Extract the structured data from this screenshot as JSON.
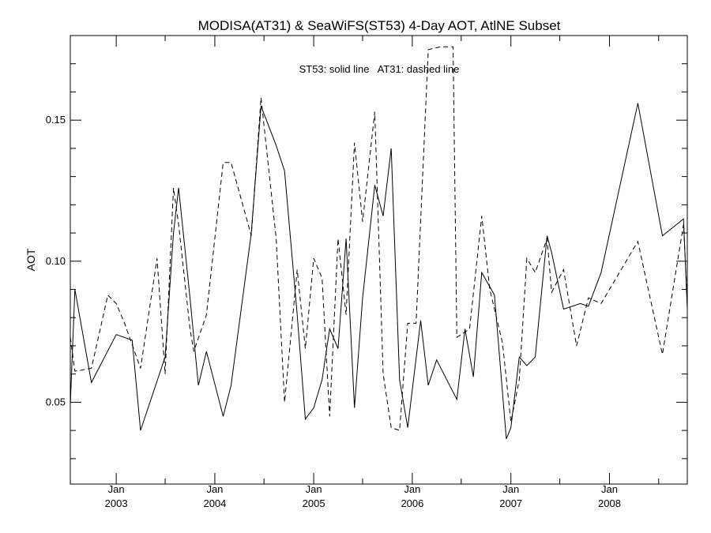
{
  "chart_data": {
    "type": "line",
    "title": "MODISA(AT31) & SeaWiFS(ST53) 4-Day AOT, AtlNE Subset",
    "annotation": "ST53: solid line   AT31: dashed line",
    "ylabel": "AOT",
    "xlabel": "",
    "xlim": [
      "2002-07-15",
      "2008-10-15"
    ],
    "ylim": [
      0.021,
      0.18
    ],
    "yticks": [
      0.05,
      0.1,
      0.15
    ],
    "yticks_labels": [
      "0.05",
      "0.10",
      "0.15"
    ],
    "xticks": [
      {
        "date": "2003-01-01",
        "month": "Jan",
        "year": "2003"
      },
      {
        "date": "2004-01-01",
        "month": "Jan",
        "year": "2004"
      },
      {
        "date": "2005-01-01",
        "month": "Jan",
        "year": "2005"
      },
      {
        "date": "2006-01-01",
        "month": "Jan",
        "year": "2006"
      },
      {
        "date": "2007-01-01",
        "month": "Jan",
        "year": "2007"
      },
      {
        "date": "2008-01-01",
        "month": "Jan",
        "year": "2008"
      }
    ],
    "grid": false,
    "series": [
      {
        "name": "ST53",
        "style": "solid",
        "x": [
          "2002-07-15",
          "2002-08-01",
          "2002-10-01",
          "2003-01-01",
          "2003-03-01",
          "2003-04-01",
          "2003-07-01",
          "2003-08-01",
          "2003-08-20",
          "2003-10-01",
          "2003-11-01",
          "2003-12-01",
          "2004-02-01",
          "2004-03-01",
          "2004-05-15",
          "2004-06-20",
          "2004-08-15",
          "2004-09-15",
          "2004-11-01",
          "2004-12-01",
          "2005-01-01",
          "2005-02-01",
          "2005-03-01",
          "2005-04-01",
          "2005-05-01",
          "2005-06-01",
          "2005-07-01",
          "2005-08-15",
          "2005-09-15",
          "2005-10-15",
          "2005-11-15",
          "2005-12-15",
          "2006-02-01",
          "2006-03-01",
          "2006-04-01",
          "2006-06-15",
          "2006-07-15",
          "2006-08-15",
          "2006-09-15",
          "2006-11-01",
          "2006-12-15",
          "2007-01-01",
          "2007-02-01",
          "2007-03-01",
          "2007-04-01",
          "2007-05-15",
          "2007-06-01",
          "2007-07-15",
          "2007-09-15",
          "2007-10-15",
          "2007-12-01",
          "2008-04-15",
          "2008-07-15",
          "2008-10-01",
          "2008-10-15"
        ],
        "y": [
          0.049,
          0.09,
          0.057,
          0.074,
          0.072,
          0.04,
          0.066,
          0.11,
          0.126,
          0.087,
          0.056,
          0.068,
          0.045,
          0.056,
          0.11,
          0.155,
          0.141,
          0.132,
          0.081,
          0.044,
          0.048,
          0.058,
          0.076,
          0.069,
          0.108,
          0.048,
          0.087,
          0.127,
          0.116,
          0.14,
          0.058,
          0.041,
          0.079,
          0.056,
          0.065,
          0.051,
          0.076,
          0.059,
          0.096,
          0.088,
          0.037,
          0.041,
          0.066,
          0.063,
          0.066,
          0.109,
          0.103,
          0.083,
          0.085,
          0.084,
          0.096,
          0.156,
          0.109,
          0.115,
          0.083
        ]
      },
      {
        "name": "AT31",
        "style": "dashed",
        "x": [
          "2002-07-15",
          "2002-08-01",
          "2002-10-01",
          "2002-12-01",
          "2003-01-01",
          "2003-02-01",
          "2003-04-01",
          "2003-06-01",
          "2003-07-01",
          "2003-08-01",
          "2003-08-20",
          "2003-10-01",
          "2003-10-15",
          "2003-12-01",
          "2004-02-01",
          "2004-03-01",
          "2004-05-15",
          "2004-06-20",
          "2004-08-15",
          "2004-09-15",
          "2004-11-01",
          "2004-12-01",
          "2005-01-01",
          "2005-02-01",
          "2005-03-01",
          "2005-04-01",
          "2005-05-01",
          "2005-06-01",
          "2005-07-01",
          "2005-08-15",
          "2005-09-15",
          "2005-10-15",
          "2005-11-15",
          "2005-12-15",
          "2006-01-15",
          "2006-03-01",
          "2006-04-15",
          "2006-06-01",
          "2006-06-15",
          "2006-08-01",
          "2006-09-15",
          "2006-10-15",
          "2006-12-01",
          "2007-01-01",
          "2007-02-01",
          "2007-03-01",
          "2007-04-01",
          "2007-05-15",
          "2007-06-01",
          "2007-07-15",
          "2007-09-01",
          "2007-10-15",
          "2007-12-01",
          "2008-04-15",
          "2008-07-15",
          "2008-10-01",
          "2008-10-15"
        ],
        "y": [
          0.073,
          0.061,
          0.062,
          0.088,
          0.085,
          0.078,
          0.062,
          0.101,
          0.06,
          0.126,
          0.113,
          0.076,
          0.068,
          0.081,
          0.135,
          0.135,
          0.109,
          0.158,
          0.108,
          0.05,
          0.097,
          0.069,
          0.101,
          0.094,
          0.045,
          0.108,
          0.081,
          0.142,
          0.114,
          0.153,
          0.06,
          0.041,
          0.04,
          0.078,
          0.078,
          0.175,
          0.176,
          0.176,
          0.073,
          0.076,
          0.116,
          0.09,
          0.071,
          0.043,
          0.058,
          0.101,
          0.096,
          0.108,
          0.089,
          0.097,
          0.07,
          0.087,
          0.085,
          0.107,
          0.067,
          0.113,
          0.086
        ]
      }
    ]
  }
}
